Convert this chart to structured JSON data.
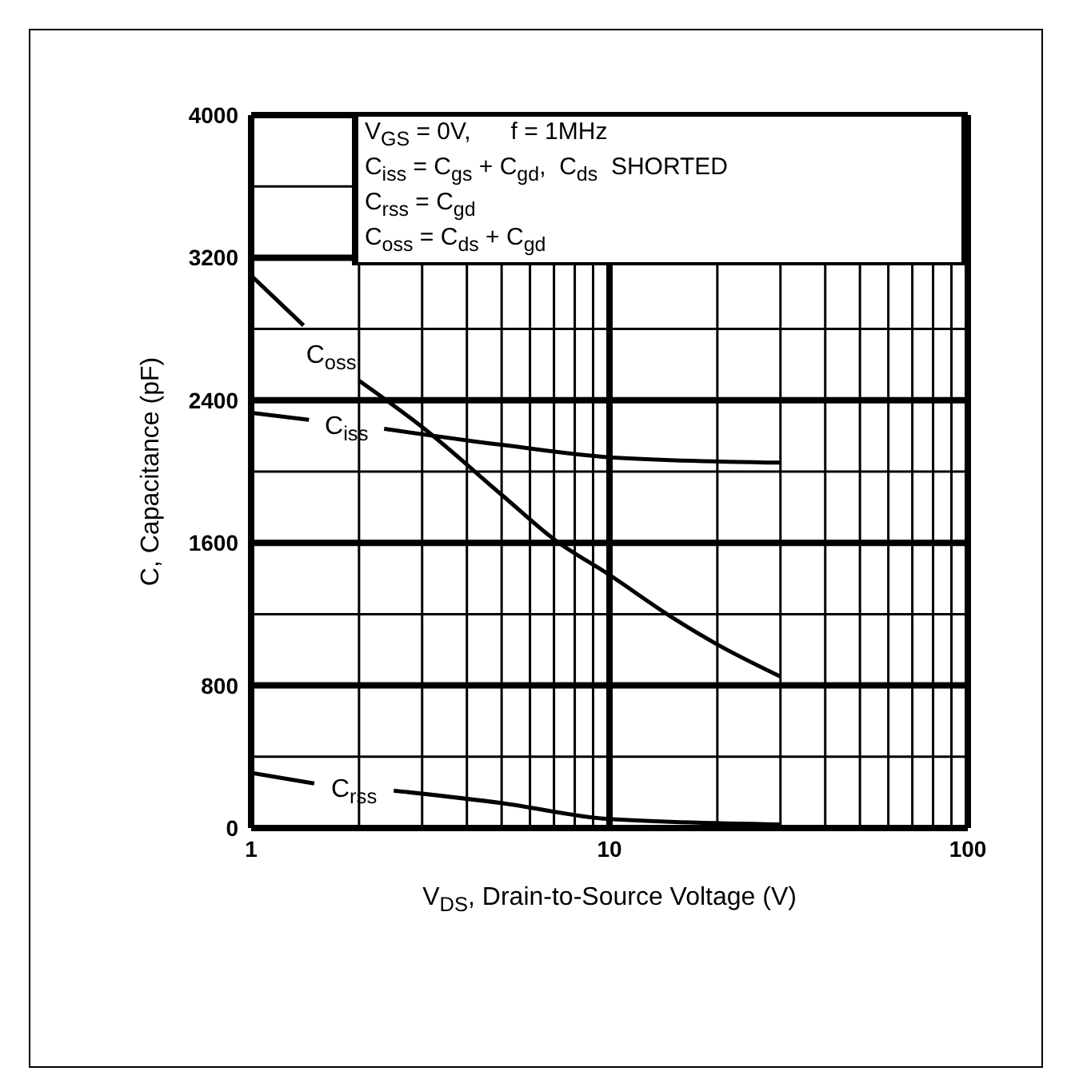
{
  "chart_data": {
    "type": "line",
    "xlabel": "V$_{DS}$, Drain-to-Source Voltage (V)",
    "ylabel": "C, Capacitance (pF)",
    "log": "x",
    "xlim": [
      1,
      100
    ],
    "xticks": [
      1,
      10,
      100
    ],
    "ylim": [
      0,
      4000
    ],
    "yticks": [
      0,
      800,
      1600,
      2400,
      3200,
      4000
    ],
    "grid": true,
    "legend": false,
    "marker": "none",
    "line_style": "solid",
    "annotations": [
      "V$_{GS}$ = 0V,      f = 1MHz",
      "C$_{iss}$ = C$_{gs}$ + C$_{gd}$,  C$_{ds}$  SHORTED",
      "C$_{rss}$ = C$_{gd}$",
      "C$_{oss}$ = C$_{ds}$ + C$_{gd}$"
    ],
    "series": [
      {
        "name": "C$_{oss}$",
        "color": "#000000",
        "x": [
          1,
          1.4,
          1.7,
          2,
          3,
          5,
          7,
          10,
          15,
          20,
          30
        ],
        "values": [
          3100,
          2820,
          null,
          2510,
          2250,
          1870,
          1620,
          1420,
          1180,
          1030,
          850
        ]
      },
      {
        "name": "C$_{iss}$",
        "color": "#000000",
        "x": [
          1,
          1.45,
          1.9,
          2.35,
          5,
          10,
          30
        ],
        "values": [
          2330,
          2290,
          null,
          2240,
          2150,
          2080,
          2050
        ]
      },
      {
        "name": "C$_{rss}$",
        "color": "#000000",
        "x": [
          1,
          1.5,
          2,
          2.5,
          5,
          10,
          30
        ],
        "values": [
          310,
          250,
          null,
          210,
          140,
          50,
          20
        ]
      }
    ]
  }
}
